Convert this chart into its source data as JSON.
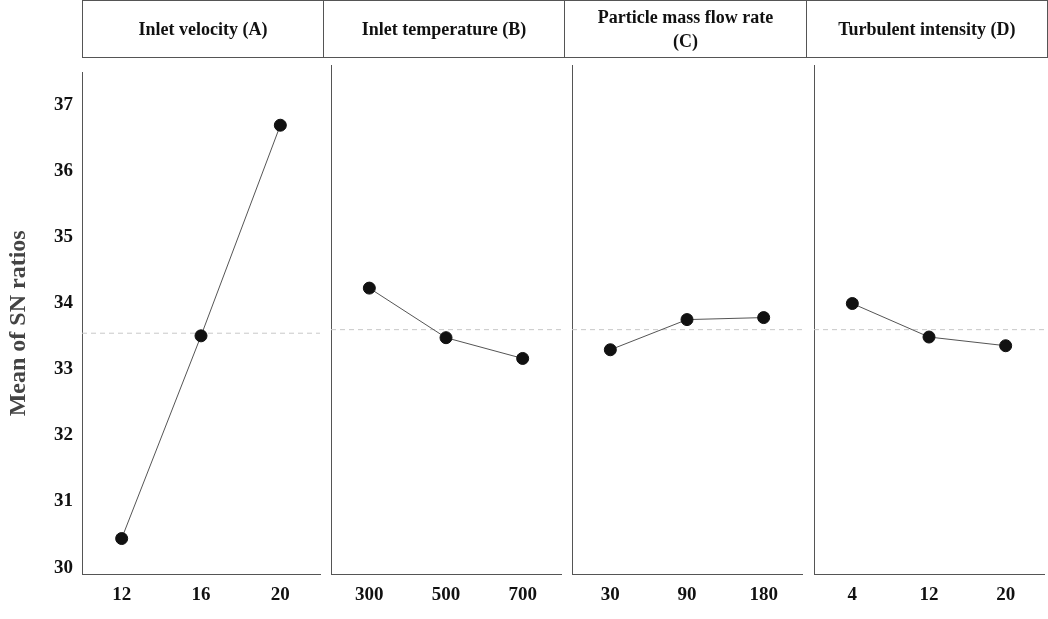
{
  "chart_data": [
    {
      "type": "line",
      "title": "Inlet velocity (A)",
      "ylabel": "Mean of SN ratios",
      "categories": [
        "12",
        "16",
        "20"
      ],
      "series": [
        {
          "color": "#111111",
          "values": [
            30.44,
            33.51,
            36.7
          ]
        }
      ],
      "ylim": [
        29.9,
        37.5
      ],
      "yticks": [
        30,
        31,
        32,
        33,
        34,
        35,
        36,
        37
      ],
      "marker": "circle",
      "line_style": "solid",
      "grid": false,
      "legend": false,
      "ref_lines": [
        {
          "axis": "y",
          "value": 33.55,
          "color": "#c8c8c8",
          "line_style": "dashed"
        }
      ]
    },
    {
      "type": "line",
      "title": "Inlet temperature (B)",
      "categories": [
        "300",
        "500",
        "700"
      ],
      "series": [
        {
          "color": "#111111",
          "values": [
            34.17,
            33.43,
            33.12
          ]
        }
      ],
      "ylim": [
        29.9,
        37.5
      ],
      "yticks": [
        30,
        31,
        32,
        33,
        34,
        35,
        36,
        37
      ],
      "tick_labels": "x",
      "marker": "circle",
      "line_style": "solid",
      "grid": false,
      "legend": false,
      "ref_lines": [
        {
          "axis": "y",
          "value": 33.55,
          "color": "#c8c8c8",
          "line_style": "dashed"
        }
      ]
    },
    {
      "type": "line",
      "title": "Particle mass flow rate (C)",
      "categories": [
        "30",
        "90",
        "180"
      ],
      "series": [
        {
          "color": "#111111",
          "values": [
            33.25,
            33.7,
            33.73
          ]
        }
      ],
      "ylim": [
        29.9,
        37.5
      ],
      "yticks": [
        30,
        31,
        32,
        33,
        34,
        35,
        36,
        37
      ],
      "tick_labels": "x",
      "marker": "circle",
      "line_style": "solid",
      "grid": false,
      "legend": false,
      "ref_lines": [
        {
          "axis": "y",
          "value": 33.55,
          "color": "#c8c8c8",
          "line_style": "dashed"
        }
      ]
    },
    {
      "type": "line",
      "title": "Turbulent intensity (D)",
      "categories": [
        "4",
        "12",
        "20"
      ],
      "series": [
        {
          "color": "#111111",
          "values": [
            33.94,
            33.44,
            33.31
          ]
        }
      ],
      "ylim": [
        29.9,
        37.5
      ],
      "yticks": [
        30,
        31,
        32,
        33,
        34,
        35,
        36,
        37
      ],
      "tick_labels": "x",
      "marker": "circle",
      "line_style": "solid",
      "grid": false,
      "legend": false,
      "ref_lines": [
        {
          "axis": "y",
          "value": 33.55,
          "color": "#c8c8c8",
          "line_style": "dashed"
        }
      ]
    }
  ]
}
